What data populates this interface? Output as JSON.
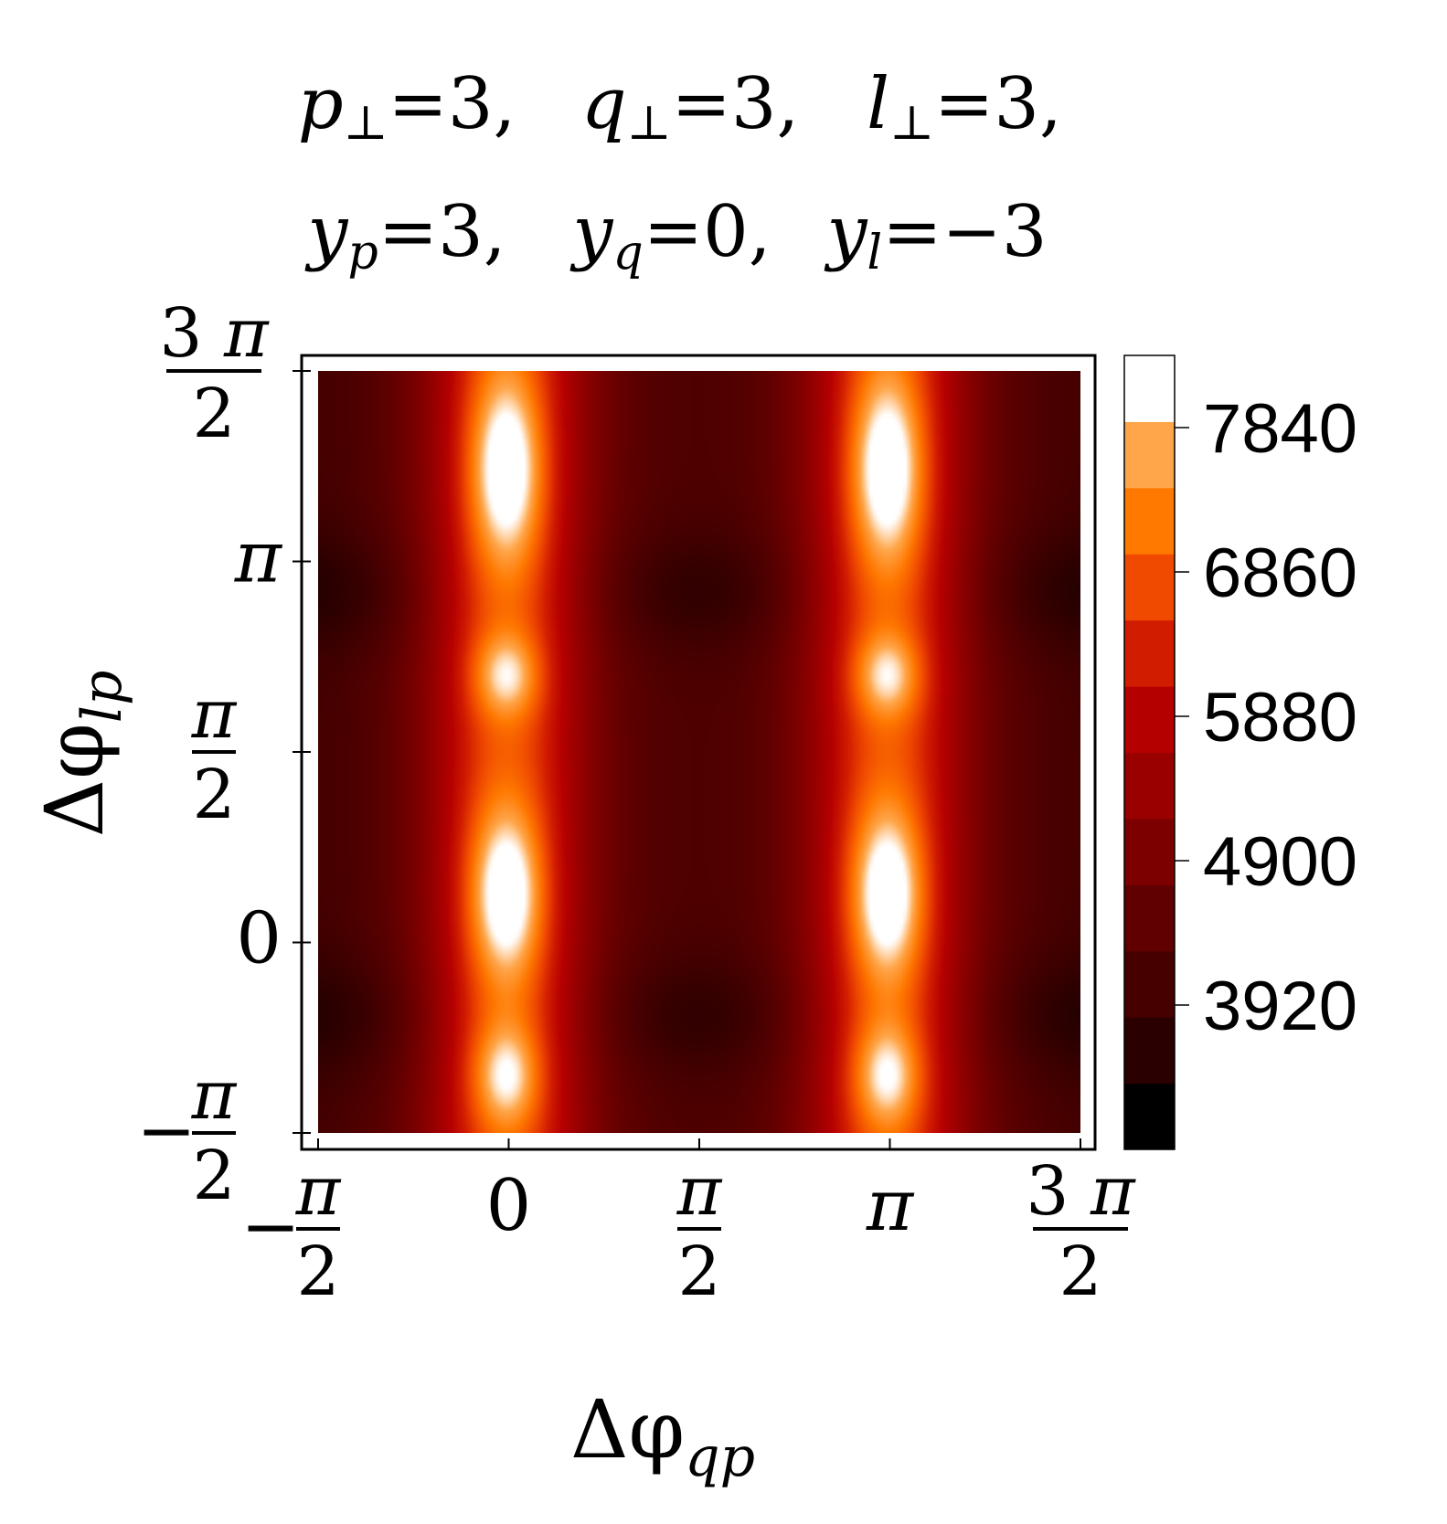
{
  "chart_data": {
    "type": "heatmap",
    "title_line1": [
      {
        "sym": "p",
        "sub": "⊥",
        "val": "=3,"
      },
      {
        "sym": "q",
        "sub": "⊥",
        "val": "=3,"
      },
      {
        "sym": "l",
        "sub": "⊥",
        "val": "=3,"
      }
    ],
    "title_line2": [
      {
        "sym": "y",
        "sub": "p",
        "val": "=3,"
      },
      {
        "sym": "y",
        "sub": "q",
        "val": "=0,"
      },
      {
        "sym": "y",
        "sub": "l",
        "val": "=−3"
      }
    ],
    "xlabel": {
      "main": "Δφ",
      "sub": "qp"
    },
    "ylabel": {
      "main": "Δφ",
      "sub": "lp"
    },
    "xlim": [
      -1.5708,
      4.7124
    ],
    "ylim": [
      -1.5708,
      4.7124
    ],
    "x_ticks": [
      {
        "value": -1.5708,
        "sign": "−",
        "num": "π",
        "den": "2"
      },
      {
        "value": 0,
        "label": "0"
      },
      {
        "value": 1.5708,
        "num": "π",
        "den": "2"
      },
      {
        "value": 3.1416,
        "label": "π"
      },
      {
        "value": 4.7124,
        "num": "3 π",
        "den": "2"
      }
    ],
    "y_ticks": [
      {
        "value": -1.5708,
        "sign": "−",
        "num": "π",
        "den": "2"
      },
      {
        "value": 0,
        "label": "0"
      },
      {
        "value": 1.5708,
        "num": "π",
        "den": "2"
      },
      {
        "value": 3.1416,
        "label": "π"
      },
      {
        "value": 4.7124,
        "num": "3 π",
        "den": "2"
      }
    ],
    "colorbar": {
      "ticks": [
        "7840",
        "6860",
        "5880",
        "4900",
        "3920"
      ],
      "tick_values": [
        7840,
        6860,
        5880,
        4900,
        3920
      ],
      "range": [
        2940,
        8330
      ],
      "colors": [
        "#000000",
        "#2a0000",
        "#470000",
        "#610000",
        "#7d0000",
        "#990000",
        "#b50000",
        "#d11c00",
        "#f04a00",
        "#ff7800",
        "#ffa64a",
        "#ffffff"
      ]
    },
    "field": {
      "base": 3700,
      "x_stripes": [
        {
          "x": -0.02,
          "amp": 2400,
          "sigma": 0.45
        },
        {
          "x": 3.12,
          "amp": 2400,
          "sigma": 0.45
        },
        {
          "x": 0.0,
          "amp": 800,
          "sigma": 0.9
        },
        {
          "x": 3.14,
          "amp": 800,
          "sigma": 0.9
        }
      ],
      "peaks": [
        {
          "x": -0.02,
          "y": 3.9,
          "amp": 2000,
          "sx": 0.22,
          "sy": 0.55
        },
        {
          "x": 3.12,
          "y": 3.9,
          "amp": 2000,
          "sx": 0.22,
          "sy": 0.55
        },
        {
          "x": -0.02,
          "y": 0.4,
          "amp": 2000,
          "sx": 0.22,
          "sy": 0.5
        },
        {
          "x": 3.12,
          "y": 0.4,
          "amp": 2000,
          "sx": 0.22,
          "sy": 0.5
        },
        {
          "x": -0.02,
          "y": 2.2,
          "amp": 1400,
          "sx": 0.2,
          "sy": 0.25
        },
        {
          "x": 3.12,
          "y": 2.2,
          "amp": 1400,
          "sx": 0.2,
          "sy": 0.25
        },
        {
          "x": -0.02,
          "y": -1.1,
          "amp": 1500,
          "sx": 0.2,
          "sy": 0.3
        },
        {
          "x": 3.12,
          "y": -1.1,
          "amp": 1500,
          "sx": 0.2,
          "sy": 0.3
        }
      ],
      "dips": [
        {
          "y": 2.9,
          "amp": 500,
          "sy": 0.35
        },
        {
          "y": -0.6,
          "amp": 500,
          "sy": 0.35
        }
      ]
    }
  }
}
